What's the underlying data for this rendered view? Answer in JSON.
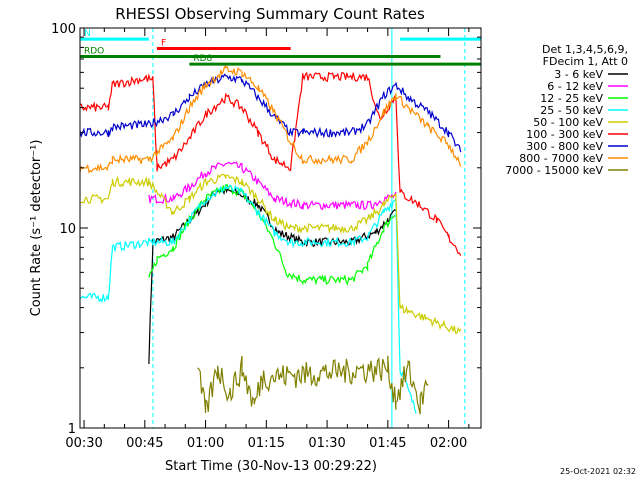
{
  "chart_data": {
    "type": "line",
    "title": "RHESSI Observing Summary Count Rates",
    "xlabel": "Start Time (30-Nov-13 00:29:22)",
    "ylabel": "Count Rate (s⁻¹ detector⁻¹)",
    "y_scale": "log",
    "ylim": [
      1,
      100
    ],
    "xlim": [
      "00:29",
      "02:08"
    ],
    "x_ticks": [
      "00:30",
      "00:45",
      "01:00",
      "01:15",
      "01:30",
      "01:45",
      "02:00"
    ],
    "y_ticks": [
      "1",
      "10",
      "100"
    ],
    "grid": false,
    "footer_timestamp": "25-Oct-2021 02:32",
    "legend": {
      "placement": "right",
      "header": [
        "Det 1,3,4,5,6,9,",
        "FDecim 1, Att 0"
      ]
    },
    "series": [
      {
        "name": "3 - 6 keV",
        "color": "#000000",
        "points": [
          [
            "00:46",
            2.2
          ],
          [
            "00:47",
            8.5
          ],
          [
            "00:52",
            9.0
          ],
          [
            "00:58",
            12
          ],
          [
            "01:03",
            15.5
          ],
          [
            "01:08",
            15
          ],
          [
            "01:13",
            13
          ],
          [
            "01:18",
            9.5
          ],
          [
            "01:24",
            8.5
          ],
          [
            "01:36",
            8.5
          ],
          [
            "01:42",
            9.5
          ],
          [
            "01:45",
            11
          ],
          [
            "01:47",
            12
          ]
        ]
      },
      {
        "name": "6 - 12 keV",
        "color": "#ff00ff",
        "points": [
          [
            "00:46",
            14
          ],
          [
            "00:52",
            14
          ],
          [
            "00:56",
            16
          ],
          [
            "01:00",
            19
          ],
          [
            "01:05",
            21
          ],
          [
            "01:09",
            20
          ],
          [
            "01:13",
            17
          ],
          [
            "01:17",
            14
          ],
          [
            "01:24",
            13
          ],
          [
            "01:36",
            13
          ],
          [
            "01:41",
            13
          ],
          [
            "01:44",
            14
          ],
          [
            "01:47",
            14.5
          ]
        ]
      },
      {
        "name": "12 - 25 keV",
        "color": "#00ff00",
        "points": [
          [
            "00:46",
            5.5
          ],
          [
            "00:48",
            7
          ],
          [
            "00:52",
            8
          ],
          [
            "00:56",
            11
          ],
          [
            "01:00",
            14
          ],
          [
            "01:05",
            16
          ],
          [
            "01:09",
            15
          ],
          [
            "01:13",
            12
          ],
          [
            "01:17",
            8.5
          ],
          [
            "01:20",
            6
          ],
          [
            "01:24",
            5.5
          ],
          [
            "01:36",
            5.5
          ],
          [
            "01:40",
            6.5
          ],
          [
            "01:44",
            10
          ],
          [
            "01:47",
            12
          ]
        ]
      },
      {
        "name": "25 - 50 keV",
        "color": "#00ffff",
        "points": [
          [
            "00:29",
            4.5
          ],
          [
            "00:36",
            4.5
          ],
          [
            "00:37",
            8
          ],
          [
            "00:46",
            8.5
          ],
          [
            "00:52",
            8.5
          ],
          [
            "00:56",
            11
          ],
          [
            "01:00",
            14
          ],
          [
            "01:05",
            16
          ],
          [
            "01:09",
            15
          ],
          [
            "01:13",
            12
          ],
          [
            "01:17",
            9.5
          ],
          [
            "01:21",
            8.5
          ],
          [
            "01:36",
            8.5
          ],
          [
            "01:40",
            9
          ],
          [
            "01:44",
            12
          ],
          [
            "01:47",
            14
          ],
          [
            "01:48",
            2
          ],
          [
            "01:52",
            1.2
          ]
        ]
      },
      {
        "name": "50 - 100 keV",
        "color": "#cccc00",
        "points": [
          [
            "00:29",
            14
          ],
          [
            "00:36",
            14
          ],
          [
            "00:37",
            17
          ],
          [
            "00:46",
            17
          ],
          [
            "00:52",
            12
          ],
          [
            "00:56",
            14
          ],
          [
            "01:00",
            17
          ],
          [
            "01:05",
            18
          ],
          [
            "01:09",
            17
          ],
          [
            "01:13",
            14
          ],
          [
            "01:17",
            11
          ],
          [
            "01:21",
            10
          ],
          [
            "01:36",
            10
          ],
          [
            "01:40",
            11
          ],
          [
            "01:44",
            13
          ],
          [
            "01:47",
            15
          ],
          [
            "01:48",
            4
          ],
          [
            "02:03",
            3
          ]
        ]
      },
      {
        "name": "100 - 300 keV",
        "color": "#ff0000",
        "points": [
          [
            "00:29",
            40
          ],
          [
            "00:36",
            40
          ],
          [
            "00:37",
            52
          ],
          [
            "00:45",
            56
          ],
          [
            "00:47",
            55
          ],
          [
            "00:48",
            20
          ],
          [
            "00:52",
            22
          ],
          [
            "00:56",
            28
          ],
          [
            "01:00",
            37
          ],
          [
            "01:05",
            45
          ],
          [
            "01:09",
            40
          ],
          [
            "01:13",
            30
          ],
          [
            "01:17",
            22
          ],
          [
            "01:21",
            20
          ],
          [
            "01:24",
            57
          ],
          [
            "01:40",
            57
          ],
          [
            "01:43",
            35
          ],
          [
            "01:47",
            46
          ],
          [
            "01:48",
            15
          ],
          [
            "01:53",
            13
          ],
          [
            "01:57",
            11
          ],
          [
            "02:00",
            9
          ],
          [
            "02:03",
            7.5
          ]
        ]
      },
      {
        "name": "300 - 800 keV",
        "color": "#0000cc",
        "points": [
          [
            "00:29",
            30
          ],
          [
            "00:36",
            30
          ],
          [
            "00:37",
            32
          ],
          [
            "00:46",
            33
          ],
          [
            "00:52",
            37
          ],
          [
            "00:56",
            45
          ],
          [
            "01:00",
            52
          ],
          [
            "01:05",
            57
          ],
          [
            "01:09",
            55
          ],
          [
            "01:13",
            45
          ],
          [
            "01:17",
            36
          ],
          [
            "01:21",
            30
          ],
          [
            "01:24",
            30
          ],
          [
            "01:36",
            30
          ],
          [
            "01:40",
            33
          ],
          [
            "01:44",
            46
          ],
          [
            "01:47",
            52
          ],
          [
            "01:50",
            45
          ],
          [
            "01:55",
            38
          ],
          [
            "02:00",
            30
          ],
          [
            "02:03",
            24
          ]
        ]
      },
      {
        "name": "800 - 7000 keV",
        "color": "#ff8c00",
        "points": [
          [
            "00:29",
            20
          ],
          [
            "00:36",
            20
          ],
          [
            "00:37",
            22
          ],
          [
            "00:46",
            22
          ],
          [
            "00:52",
            28
          ],
          [
            "00:56",
            40
          ],
          [
            "01:00",
            52
          ],
          [
            "01:05",
            62
          ],
          [
            "01:09",
            60
          ],
          [
            "01:13",
            50
          ],
          [
            "01:17",
            38
          ],
          [
            "01:21",
            27
          ],
          [
            "01:24",
            22
          ],
          [
            "01:36",
            22
          ],
          [
            "01:40",
            27
          ],
          [
            "01:44",
            38
          ],
          [
            "01:47",
            46
          ],
          [
            "01:50",
            40
          ],
          [
            "01:55",
            32
          ],
          [
            "02:00",
            26
          ],
          [
            "02:03",
            21
          ]
        ]
      },
      {
        "name": "7000 - 15000 keV",
        "color": "#808000",
        "points": [
          [
            "00:58",
            2
          ],
          [
            "01:00",
            1.2
          ],
          [
            "01:03",
            2
          ],
          [
            "01:06",
            1.5
          ],
          [
            "01:09",
            2
          ],
          [
            "01:12",
            1.3
          ],
          [
            "01:14",
            1.8
          ],
          [
            "01:45",
            2
          ],
          [
            "01:47",
            1.4
          ],
          [
            "01:50",
            2
          ],
          [
            "01:53",
            1.3
          ],
          [
            "01:55",
            1.8
          ]
        ]
      }
    ],
    "state_bars": [
      {
        "label": "N",
        "color": "#00ffff",
        "y": 88,
        "start": "00:29",
        "end": "00:46"
      },
      {
        "label": "",
        "color": "#00ffff",
        "y": 88,
        "start": "01:48",
        "end": "02:08"
      },
      {
        "label": "F",
        "color": "#ff0000",
        "y": 79,
        "start": "00:48",
        "end": "01:21"
      },
      {
        "label": "RDO",
        "color": "#008000",
        "y": 72,
        "start": "00:29",
        "end": "01:58"
      },
      {
        "label": "RD8",
        "color": "#008000",
        "y": 66,
        "start": "00:56",
        "end": "02:08"
      }
    ],
    "markers": [
      {
        "time": "00:47",
        "style": "dashed",
        "color": "#00ffff"
      },
      {
        "time": "02:04",
        "style": "dashed",
        "color": "#00ffff"
      },
      {
        "time": "00:29",
        "style": "solid",
        "color": "#00ffff"
      },
      {
        "time": "01:46",
        "style": "solid",
        "color": "#00ffff"
      }
    ]
  }
}
